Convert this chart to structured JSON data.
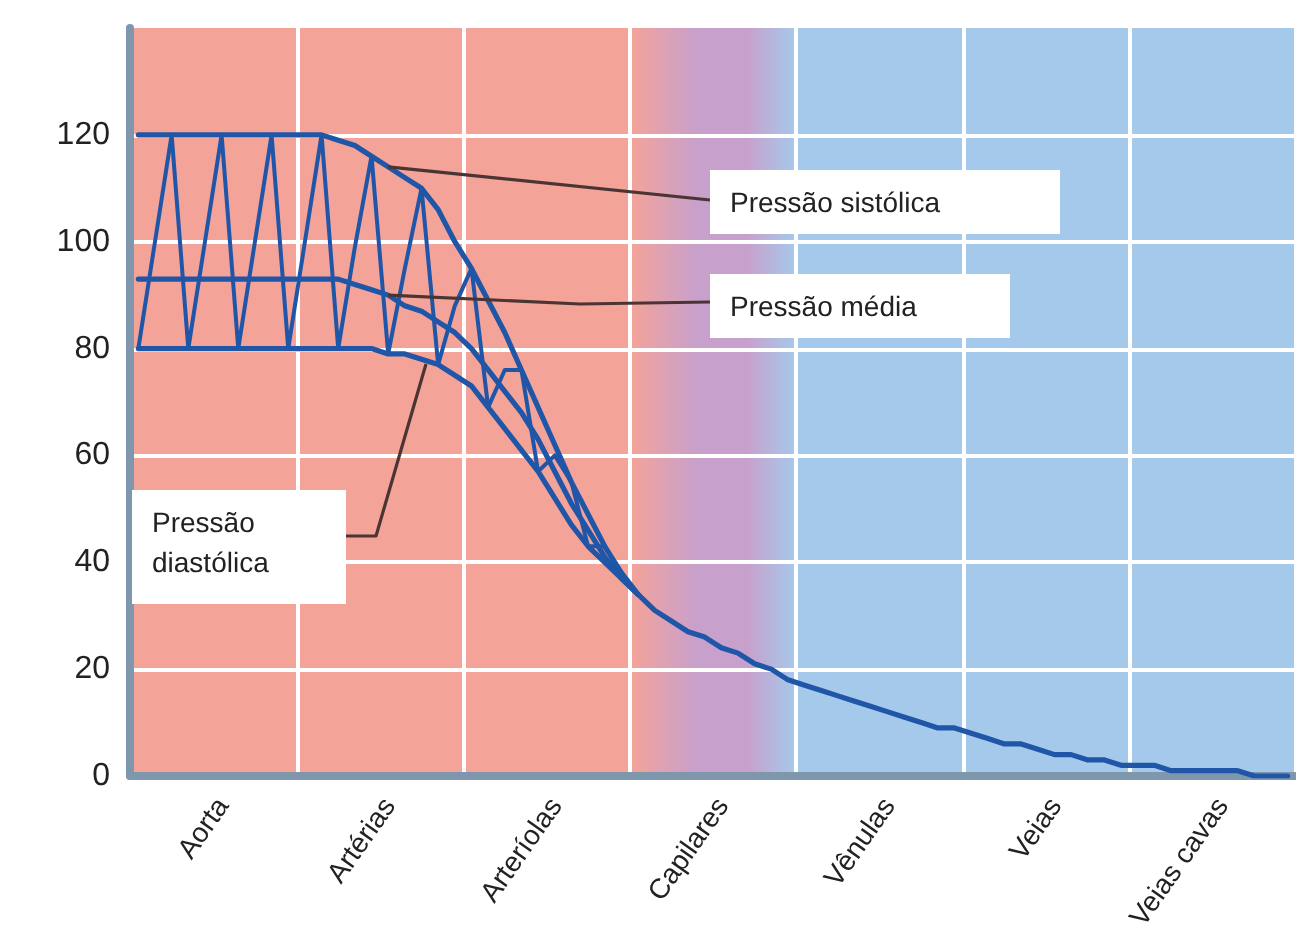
{
  "chart_data": {
    "type": "line",
    "categories": [
      null,
      null,
      null,
      null,
      null,
      "Aorta",
      null,
      null,
      null,
      null,
      null,
      null,
      null,
      null,
      null,
      "Artérias",
      null,
      null,
      null,
      null,
      null,
      null,
      null,
      null,
      null,
      "Arteríolas",
      null,
      null,
      null,
      null,
      null,
      null,
      null,
      null,
      null,
      "Capilares",
      null,
      null,
      null,
      null,
      null,
      null,
      null,
      null,
      null,
      "Vênulas",
      null,
      null,
      null,
      null,
      null,
      null,
      null,
      null,
      null,
      "Veias",
      null,
      null,
      null,
      null,
      null,
      null,
      null,
      null,
      null,
      "Veias cavas",
      null,
      null,
      null,
      null
    ],
    "ylim": [
      0,
      140
    ],
    "yticks": [
      0,
      20,
      40,
      60,
      80,
      100,
      120
    ],
    "grid": true,
    "marker": "none",
    "line_style": "solid",
    "series": [
      {
        "color": "#1f56a8",
        "values": [
          120,
          120,
          120,
          120,
          120,
          120,
          120,
          120,
          120,
          120,
          120,
          120,
          119,
          118,
          116,
          114,
          112,
          110,
          106,
          100,
          95,
          89,
          83,
          76,
          69,
          62,
          55,
          49,
          43,
          38,
          34,
          null,
          null,
          null,
          null,
          null,
          null,
          null,
          null,
          null,
          null,
          null,
          null,
          null,
          null,
          null,
          null,
          null,
          null,
          null,
          null,
          null,
          null,
          null,
          null,
          null,
          null,
          null,
          null,
          null,
          null,
          null,
          null,
          null,
          null,
          null,
          null,
          null,
          null,
          null
        ]
      },
      {
        "color": "#1f56a8",
        "values": [
          93,
          93,
          93,
          93,
          93,
          93,
          93,
          93,
          93,
          93,
          93,
          93,
          93,
          92,
          91,
          90,
          88,
          87,
          85,
          83,
          80,
          76,
          72,
          68,
          63,
          57,
          51,
          46,
          41,
          37,
          34,
          31,
          29,
          27,
          26,
          24,
          23,
          21,
          20,
          18,
          17,
          16,
          15,
          14,
          13,
          12,
          11,
          10,
          9,
          9,
          8,
          7,
          6,
          6,
          5,
          4,
          4,
          3,
          3,
          2,
          2,
          2,
          1,
          1,
          1,
          1,
          1,
          0,
          0,
          0
        ]
      },
      {
        "color": "#1f56a8",
        "values": [
          80,
          80,
          80,
          80,
          80,
          80,
          80,
          80,
          80,
          80,
          80,
          80,
          80,
          80,
          80,
          79,
          79,
          78,
          77,
          75,
          73,
          69,
          65,
          61,
          57,
          52,
          47,
          43,
          40,
          37,
          34,
          null,
          null,
          null,
          null,
          null,
          null,
          null,
          null,
          null,
          null,
          null,
          null,
          null,
          null,
          null,
          null,
          null,
          null,
          null,
          null,
          null,
          null,
          null,
          null,
          null,
          null,
          null,
          null,
          null,
          null,
          null,
          null,
          null,
          null,
          null,
          null,
          null,
          null,
          null
        ]
      },
      {
        "color": "#1f56a8",
        "values": [
          80,
          100,
          120,
          80,
          100,
          120,
          80,
          100,
          120,
          80,
          100,
          120,
          80,
          99,
          116,
          79,
          95,
          110,
          77,
          88,
          95,
          69,
          76,
          76,
          57,
          60,
          55,
          43,
          43,
          38,
          34,
          null,
          null,
          null,
          null,
          null,
          null,
          null,
          null,
          null,
          null,
          null,
          null,
          null,
          null,
          null,
          null,
          null,
          null,
          null,
          null,
          null,
          null,
          null,
          null,
          null,
          null,
          null,
          null,
          null,
          null,
          null,
          null,
          null,
          null,
          null,
          null,
          null,
          null,
          null
        ]
      }
    ],
    "annotations": [
      {
        "text": "Pressão sistólica",
        "x": "Artérias",
        "y": 114
      },
      {
        "text": "Pressão média",
        "x": "Artérias",
        "y": 90
      },
      "Pressão diastólica"
    ]
  }
}
